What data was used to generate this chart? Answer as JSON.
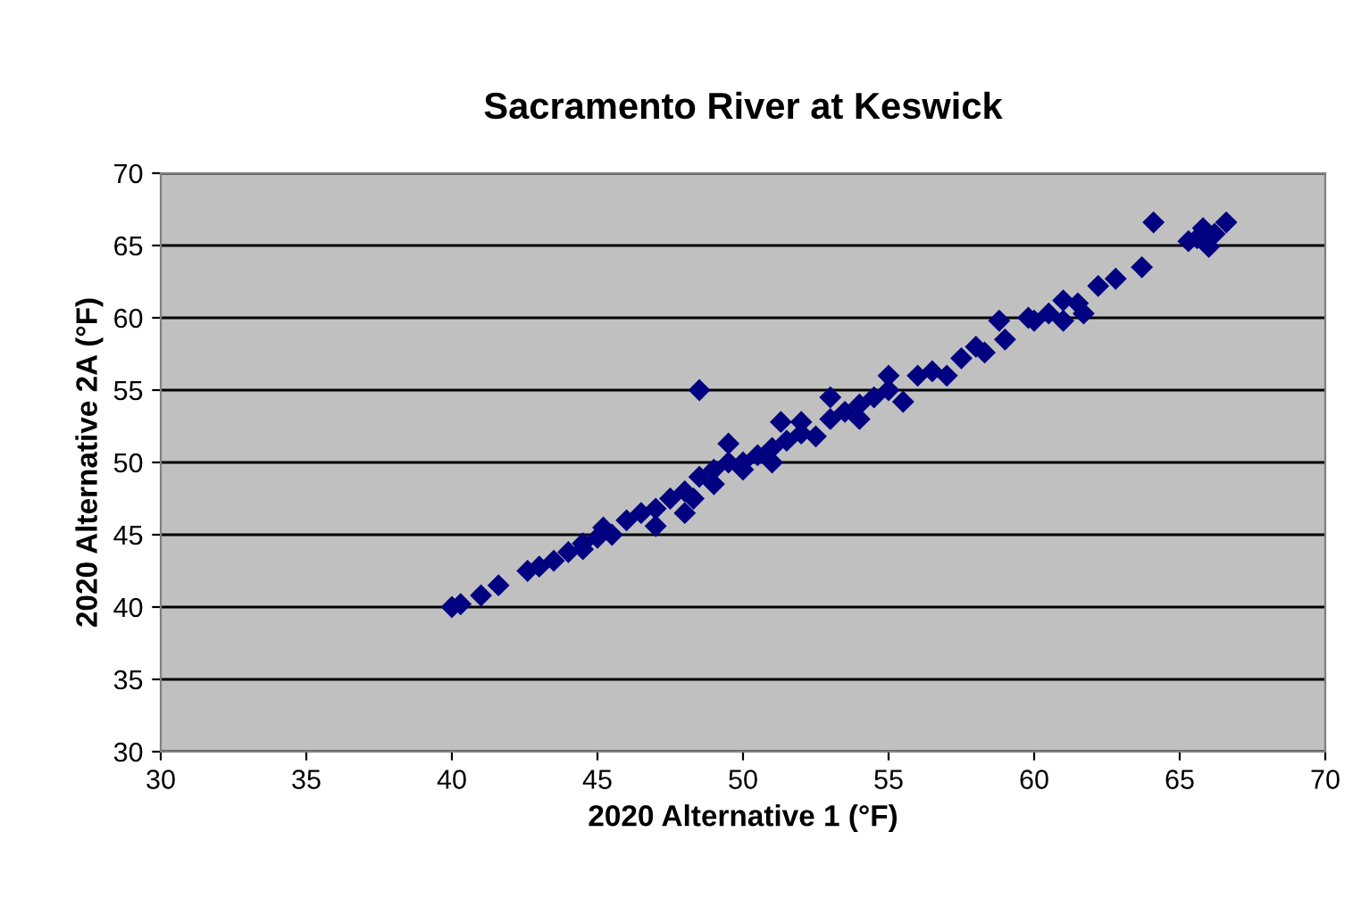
{
  "chart_data": {
    "type": "scatter",
    "title": "Sacramento River at Keswick",
    "xlabel": "2020 Alternative 1 (°F)",
    "ylabel": "2020 Alternative 2A (°F)",
    "x": [
      40,
      40.3,
      41,
      41.6,
      42.6,
      43,
      43.5,
      44,
      44.5,
      44.5,
      45,
      45.2,
      45.5,
      46,
      46.5,
      47,
      47,
      47.5,
      48,
      48,
      48.3,
      48.5,
      48.5,
      49,
      49,
      49.5,
      49.5,
      50,
      50,
      50.5,
      51,
      51,
      51.3,
      51.5,
      52,
      52,
      52.5,
      53,
      53,
      53.5,
      54,
      54,
      54.5,
      55,
      55,
      55.5,
      56,
      56.5,
      57,
      57.5,
      58,
      58.3,
      58.8,
      59,
      59.8,
      60,
      60.5,
      61,
      61,
      61.5,
      61.7,
      62.2,
      62.8,
      63.7,
      64.1,
      65.3,
      65.6,
      65.8,
      66,
      66.2,
      66.6
    ],
    "series": [
      {
        "color": "#000080",
        "values": [
          40,
          40.2,
          40.8,
          41.5,
          42.5,
          42.8,
          43.2,
          43.8,
          44.4,
          44,
          44.8,
          45.5,
          45,
          46,
          46.5,
          46.8,
          45.6,
          47.5,
          48,
          46.5,
          47.5,
          49,
          55,
          48.5,
          49.5,
          50,
          51.3,
          50,
          49.5,
          50.5,
          51,
          50,
          52.8,
          51.5,
          52,
          52.8,
          51.8,
          53,
          54.5,
          53.5,
          53,
          54,
          54.5,
          55,
          56,
          54.2,
          56,
          56.3,
          56,
          57.2,
          58,
          57.6,
          59.8,
          58.5,
          60,
          59.8,
          60.3,
          61.2,
          59.8,
          61,
          60.3,
          62.2,
          62.7,
          63.5,
          66.6,
          65.3,
          65.5,
          66.2,
          64.9,
          65.8,
          66.6
        ]
      }
    ],
    "marker": "diamond",
    "xlim": [
      30,
      70
    ],
    "ylim": [
      30,
      70
    ],
    "xticks": [
      30,
      35,
      40,
      45,
      50,
      55,
      60,
      65,
      70
    ],
    "yticks": [
      30,
      35,
      40,
      45,
      50,
      55,
      60,
      65,
      70
    ],
    "grid": "y"
  }
}
